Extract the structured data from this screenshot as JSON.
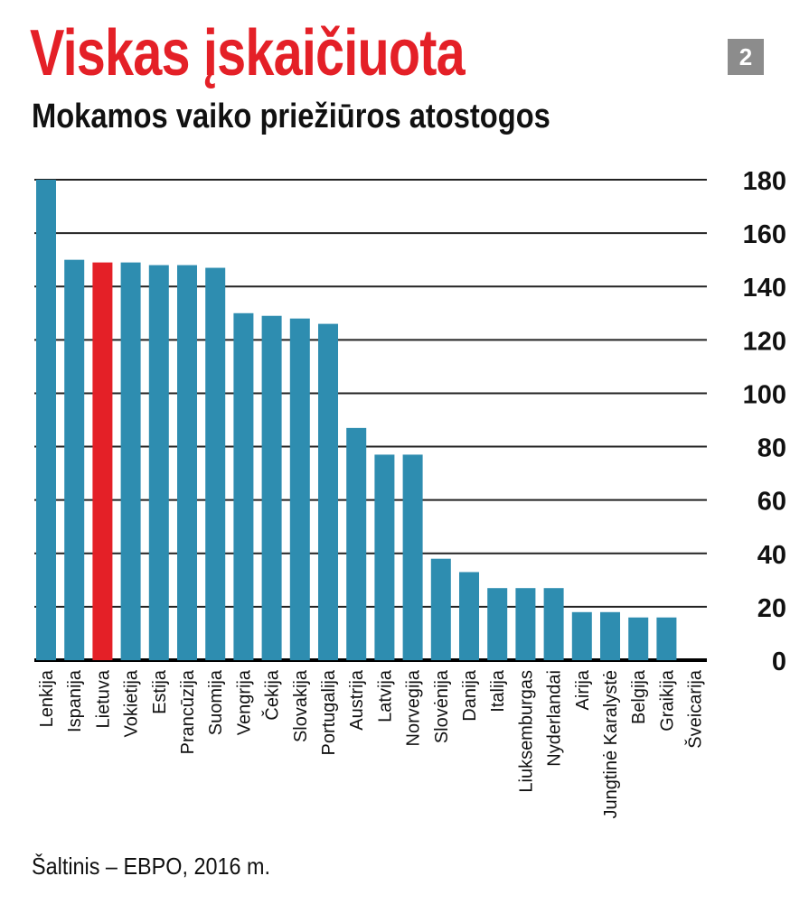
{
  "header": {
    "title": "Viskas įskaičiuota",
    "subtitle": "Mokamos vaiko priežiūros atostogos",
    "badge": "2"
  },
  "source": "Šaltinis – EBPO, 2016 m.",
  "colors": {
    "bar": "#2e8db0",
    "highlight": "#e42027",
    "title": "#e42027"
  },
  "chart_data": {
    "type": "bar",
    "title": "Mokamos vaiko priežiūros atostogos",
    "xlabel": "",
    "ylabel": "",
    "ylim": [
      0,
      180
    ],
    "yticks": [
      0,
      20,
      40,
      60,
      80,
      100,
      120,
      140,
      160,
      180
    ],
    "grid": true,
    "highlight": "Lietuva",
    "categories": [
      "Lenkija",
      "Ispanija",
      "Lietuva",
      "Vokietija",
      "Estija",
      "Prancūzija",
      "Suomija",
      "Vengrija",
      "Čekija",
      "Slovakija",
      "Portugalija",
      "Austrija",
      "Latvija",
      "Norvegija",
      "Slovėnija",
      "Danija",
      "Italija",
      "Liuksemburgas",
      "Nyderlandai",
      "Airija",
      "Jungtinė Karalystė",
      "Belgija",
      "Graikija",
      "Šveicarija"
    ],
    "values": [
      180,
      150,
      149,
      149,
      148,
      148,
      147,
      130,
      129,
      128,
      126,
      87,
      77,
      77,
      38,
      33,
      27,
      27,
      27,
      18,
      18,
      16,
      16,
      0
    ]
  }
}
